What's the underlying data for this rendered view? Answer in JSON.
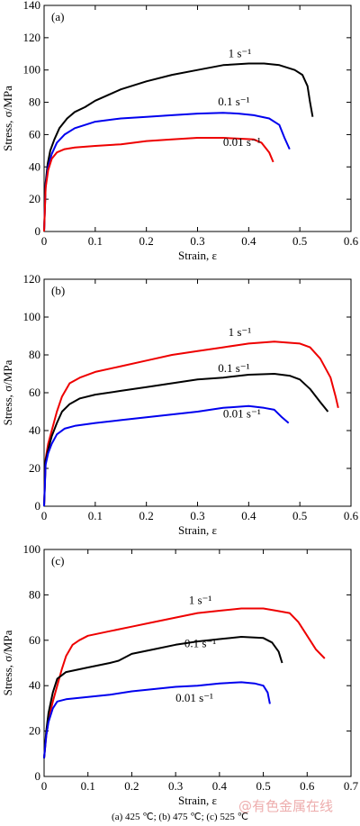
{
  "figure": {
    "caption": "(a) 425 ℃; (b) 475 ℃; (c) 525 ℃",
    "watermark": "@有色金属在线"
  },
  "chart_data": [
    {
      "type": "line",
      "panel_label": "(a)",
      "xlabel": "Strain, ε",
      "ylabel": "Stress, σ/MPa",
      "xlim": [
        0,
        0.6
      ],
      "ylim": [
        0,
        140
      ],
      "xticks": [
        0,
        0.1,
        0.2,
        0.3,
        0.4,
        0.5,
        0.6
      ],
      "yticks": [
        0,
        20,
        40,
        60,
        80,
        100,
        120,
        140
      ],
      "tick_labels_x": [
        "0",
        "0.1",
        "0.2",
        "0.3",
        "0.4",
        "0.5",
        "0.6"
      ],
      "tick_labels_y": [
        "0",
        "20",
        "40",
        "60",
        "80",
        "100",
        "120",
        "140"
      ],
      "grid": false,
      "legend": "none",
      "series": [
        {
          "name": "1 s⁻¹",
          "color": "#000000",
          "points": [
            [
              0,
              0
            ],
            [
              0.003,
              30
            ],
            [
              0.007,
              42
            ],
            [
              0.012,
              50
            ],
            [
              0.02,
              57
            ],
            [
              0.03,
              64
            ],
            [
              0.045,
              70
            ],
            [
              0.06,
              74
            ],
            [
              0.08,
              77
            ],
            [
              0.1,
              81
            ],
            [
              0.15,
              88
            ],
            [
              0.2,
              93
            ],
            [
              0.25,
              97
            ],
            [
              0.3,
              100
            ],
            [
              0.35,
              103
            ],
            [
              0.4,
              104
            ],
            [
              0.43,
              104
            ],
            [
              0.46,
              103
            ],
            [
              0.49,
              100
            ],
            [
              0.505,
              97
            ],
            [
              0.515,
              90
            ],
            [
              0.52,
              80
            ],
            [
              0.525,
              71
            ]
          ]
        },
        {
          "name": "0.1 s⁻¹",
          "color": "#0000ee",
          "points": [
            [
              0,
              0
            ],
            [
              0.003,
              28
            ],
            [
              0.008,
              40
            ],
            [
              0.015,
              48
            ],
            [
              0.025,
              55
            ],
            [
              0.04,
              60
            ],
            [
              0.06,
              64
            ],
            [
              0.08,
              66
            ],
            [
              0.1,
              68
            ],
            [
              0.15,
              70
            ],
            [
              0.2,
              71
            ],
            [
              0.25,
              72
            ],
            [
              0.3,
              73
            ],
            [
              0.35,
              73.5
            ],
            [
              0.38,
              73
            ],
            [
              0.41,
              72
            ],
            [
              0.44,
              70
            ],
            [
              0.46,
              66
            ],
            [
              0.47,
              58
            ],
            [
              0.48,
              51
            ]
          ]
        },
        {
          "name": "0.01 s⁻¹",
          "color": "#ee0000",
          "points": [
            [
              0,
              0
            ],
            [
              0.003,
              27
            ],
            [
              0.008,
              38
            ],
            [
              0.015,
              45
            ],
            [
              0.025,
              49
            ],
            [
              0.04,
              51
            ],
            [
              0.06,
              52
            ],
            [
              0.1,
              53
            ],
            [
              0.15,
              54
            ],
            [
              0.2,
              56
            ],
            [
              0.25,
              57
            ],
            [
              0.3,
              58
            ],
            [
              0.35,
              58
            ],
            [
              0.38,
              57.5
            ],
            [
              0.41,
              57
            ],
            [
              0.425,
              55
            ],
            [
              0.44,
              49
            ],
            [
              0.448,
              43
            ]
          ]
        }
      ],
      "annotations": [
        {
          "text": "1 s⁻¹",
          "x": 0.36,
          "y": 108
        },
        {
          "text": "0.1 s⁻¹",
          "x": 0.34,
          "y": 78
        },
        {
          "text": "0.01 s⁻¹",
          "x": 0.35,
          "y": 53
        }
      ]
    },
    {
      "type": "line",
      "panel_label": "(b)",
      "xlabel": "Strain, ε",
      "ylabel": "Stress, σ/MPa",
      "xlim": [
        0,
        0.6
      ],
      "ylim": [
        0,
        120
      ],
      "xticks": [
        0,
        0.1,
        0.2,
        0.3,
        0.4,
        0.5,
        0.6
      ],
      "yticks": [
        0,
        20,
        40,
        60,
        80,
        100,
        120
      ],
      "tick_labels_x": [
        "0",
        "0.1",
        "0.2",
        "0.3",
        "0.4",
        "0.5",
        "0.6"
      ],
      "tick_labels_y": [
        "0",
        "20",
        "40",
        "60",
        "80",
        "100",
        "120"
      ],
      "grid": false,
      "legend": "none",
      "series": [
        {
          "name": "1 s⁻¹",
          "color": "#ee0000",
          "points": [
            [
              0,
              0
            ],
            [
              0.003,
              25
            ],
            [
              0.008,
              33
            ],
            [
              0.015,
              40
            ],
            [
              0.025,
              50
            ],
            [
              0.035,
              58
            ],
            [
              0.05,
              65
            ],
            [
              0.07,
              68
            ],
            [
              0.1,
              71
            ],
            [
              0.15,
              74
            ],
            [
              0.2,
              77
            ],
            [
              0.25,
              80
            ],
            [
              0.3,
              82
            ],
            [
              0.35,
              84
            ],
            [
              0.4,
              86
            ],
            [
              0.45,
              87
            ],
            [
              0.5,
              86
            ],
            [
              0.52,
              84
            ],
            [
              0.54,
              78
            ],
            [
              0.56,
              68
            ],
            [
              0.57,
              58
            ],
            [
              0.575,
              52
            ]
          ]
        },
        {
          "name": "0.1 s⁻¹",
          "color": "#000000",
          "points": [
            [
              0,
              0
            ],
            [
              0.003,
              24
            ],
            [
              0.008,
              30
            ],
            [
              0.015,
              37
            ],
            [
              0.025,
              44
            ],
            [
              0.035,
              50
            ],
            [
              0.05,
              54
            ],
            [
              0.07,
              57
            ],
            [
              0.1,
              59
            ],
            [
              0.15,
              61
            ],
            [
              0.2,
              63
            ],
            [
              0.25,
              65
            ],
            [
              0.3,
              67
            ],
            [
              0.35,
              68
            ],
            [
              0.4,
              69.5
            ],
            [
              0.45,
              70
            ],
            [
              0.48,
              69
            ],
            [
              0.5,
              67
            ],
            [
              0.52,
              62
            ],
            [
              0.54,
              55
            ],
            [
              0.555,
              50
            ]
          ]
        },
        {
          "name": "0.01 s⁻¹",
          "color": "#0000ee",
          "points": [
            [
              0,
              0
            ],
            [
              0.003,
              22
            ],
            [
              0.008,
              28
            ],
            [
              0.015,
              33
            ],
            [
              0.025,
              38
            ],
            [
              0.04,
              41
            ],
            [
              0.06,
              42.5
            ],
            [
              0.1,
              44
            ],
            [
              0.15,
              45.5
            ],
            [
              0.2,
              47
            ],
            [
              0.25,
              48.5
            ],
            [
              0.3,
              50
            ],
            [
              0.35,
              52
            ],
            [
              0.4,
              53
            ],
            [
              0.43,
              52
            ],
            [
              0.45,
              51
            ],
            [
              0.465,
              47
            ],
            [
              0.478,
              44
            ]
          ]
        }
      ],
      "annotations": [
        {
          "text": "1 s⁻¹",
          "x": 0.36,
          "y": 90
        },
        {
          "text": "0.1 s⁻¹",
          "x": 0.34,
          "y": 71
        },
        {
          "text": "0.01 s⁻¹",
          "x": 0.35,
          "y": 47
        }
      ]
    },
    {
      "type": "line",
      "panel_label": "(c)",
      "xlabel": "Strain, ε",
      "ylabel": "Stress, σ/MPa",
      "xlim": [
        0,
        0.7
      ],
      "ylim": [
        0,
        100
      ],
      "xticks": [
        0,
        0.1,
        0.2,
        0.3,
        0.4,
        0.5,
        0.6,
        0.7
      ],
      "yticks": [
        0,
        20,
        40,
        60,
        80,
        100
      ],
      "tick_labels_x": [
        "0",
        "0.1",
        "0.2",
        "0.3",
        "0.4",
        "0.5",
        "0.6",
        "0.7"
      ],
      "tick_labels_y": [
        "0",
        "20",
        "40",
        "60",
        "80",
        "100"
      ],
      "grid": false,
      "legend": "none",
      "series": [
        {
          "name": "1 s⁻¹",
          "color": "#ee0000",
          "points": [
            [
              0,
              8
            ],
            [
              0.005,
              18
            ],
            [
              0.01,
              25
            ],
            [
              0.02,
              33
            ],
            [
              0.03,
              40
            ],
            [
              0.04,
              47
            ],
            [
              0.05,
              53
            ],
            [
              0.065,
              58
            ],
            [
              0.08,
              60
            ],
            [
              0.1,
              62
            ],
            [
              0.15,
              64
            ],
            [
              0.2,
              66
            ],
            [
              0.25,
              68
            ],
            [
              0.3,
              70
            ],
            [
              0.35,
              72
            ],
            [
              0.4,
              73
            ],
            [
              0.45,
              74
            ],
            [
              0.5,
              74
            ],
            [
              0.53,
              73
            ],
            [
              0.56,
              72
            ],
            [
              0.58,
              68
            ],
            [
              0.6,
              62
            ],
            [
              0.62,
              56
            ],
            [
              0.64,
              52
            ]
          ]
        },
        {
          "name": "0.1 s⁻¹",
          "color": "#000000",
          "points": [
            [
              0,
              8
            ],
            [
              0.005,
              20
            ],
            [
              0.01,
              28
            ],
            [
              0.02,
              37
            ],
            [
              0.03,
              43
            ],
            [
              0.05,
              46
            ],
            [
              0.1,
              48
            ],
            [
              0.15,
              50
            ],
            [
              0.17,
              51
            ],
            [
              0.2,
              54
            ],
            [
              0.25,
              56
            ],
            [
              0.3,
              58
            ],
            [
              0.35,
              59.5
            ],
            [
              0.4,
              60.5
            ],
            [
              0.45,
              61.5
            ],
            [
              0.5,
              61
            ],
            [
              0.52,
              59
            ],
            [
              0.535,
              55
            ],
            [
              0.543,
              50
            ]
          ]
        },
        {
          "name": "0.01 s⁻¹",
          "color": "#0000ee",
          "points": [
            [
              0,
              8
            ],
            [
              0.005,
              18
            ],
            [
              0.01,
              24
            ],
            [
              0.02,
              30
            ],
            [
              0.03,
              33
            ],
            [
              0.05,
              34
            ],
            [
              0.1,
              35
            ],
            [
              0.15,
              36
            ],
            [
              0.2,
              37.5
            ],
            [
              0.25,
              38.5
            ],
            [
              0.3,
              39.5
            ],
            [
              0.35,
              40
            ],
            [
              0.4,
              41
            ],
            [
              0.45,
              41.5
            ],
            [
              0.48,
              41
            ],
            [
              0.5,
              40
            ],
            [
              0.51,
              37
            ],
            [
              0.515,
              32
            ]
          ]
        }
      ],
      "annotations": [
        {
          "text": "1 s⁻¹",
          "x": 0.33,
          "y": 76
        },
        {
          "text": "0.1 s⁻¹",
          "x": 0.32,
          "y": 57
        },
        {
          "text": "0.01 s⁻¹",
          "x": 0.3,
          "y": 33
        }
      ]
    }
  ]
}
